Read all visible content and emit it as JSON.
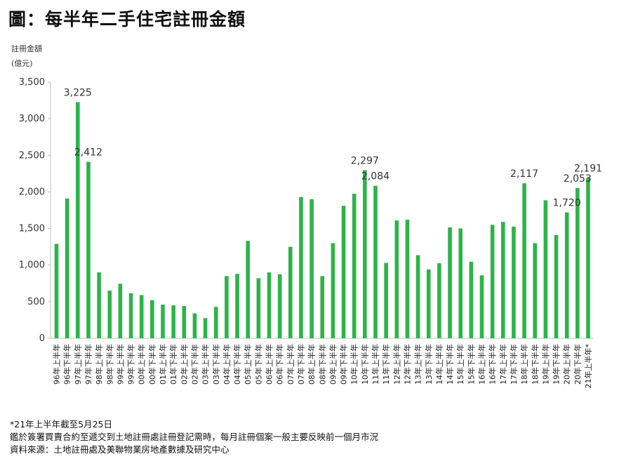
{
  "title": "圖：每半年二手住宅註冊金額",
  "chart_data": {
    "type": "bar",
    "title": "圖：每半年二手住宅註冊金額",
    "ylabel_line1": "註冊金額",
    "ylabel_line2": "(億元)",
    "xlabel": "",
    "ylim": [
      0,
      3500
    ],
    "yticks": [
      0,
      500,
      1000,
      1500,
      2000,
      2500,
      3000,
      3500
    ],
    "ytick_labels": [
      "0",
      "500",
      "1,000",
      "1,500",
      "2,000",
      "2,500",
      "3,000",
      "3,500"
    ],
    "grid": false,
    "bar_color": "#2db34a",
    "categories": [
      "96年上半年",
      "96年下半年",
      "97年上半年",
      "97年下半年",
      "98年上半年",
      "98年下半年",
      "99年上半年",
      "99年下半年",
      "00年上半年",
      "00年下半年",
      "01年上半年",
      "01年下半年",
      "02年上半年",
      "02年下半年",
      "03年上半年",
      "03年下半年",
      "04年上半年",
      "04年下半年",
      "05年上半年",
      "05年下半年",
      "06年上半年",
      "06年下半年",
      "07年上半年",
      "07年下半年",
      "08年上半年",
      "08年下半年",
      "09年上半年",
      "09年下半年",
      "10年上半年",
      "10年下半年",
      "11年上半年",
      "11年下半年",
      "12年上半年",
      "12年下半年",
      "13年上半年",
      "13年下半年",
      "14年上半年",
      "14年下半年",
      "15年上半年",
      "15年下半年",
      "16年上半年",
      "16年下半年",
      "17年上半年",
      "17年下半年",
      "18年上半年",
      "18年下半年",
      "19年上半年",
      "19年下半年",
      "20年上半年",
      "20年下半年",
      "21年上半年*"
    ],
    "values": [
      1290,
      1910,
      3225,
      2412,
      900,
      650,
      745,
      615,
      590,
      520,
      460,
      450,
      440,
      340,
      275,
      430,
      850,
      880,
      1330,
      820,
      900,
      875,
      1250,
      1930,
      1900,
      850,
      1300,
      1810,
      1975,
      2297,
      2084,
      1030,
      1610,
      1620,
      1135,
      940,
      1025,
      1515,
      1500,
      1045,
      860,
      1550,
      1590,
      1525,
      2117,
      1300,
      1885,
      1410,
      1720,
      2053,
      2191
    ],
    "data_labels": [
      {
        "index": 2,
        "text": "3,225"
      },
      {
        "index": 3,
        "text": "2,412"
      },
      {
        "index": 29,
        "text": "2,297"
      },
      {
        "index": 30,
        "text": "2,084"
      },
      {
        "index": 44,
        "text": "2,117"
      },
      {
        "index": 48,
        "text": "1,720"
      },
      {
        "index": 49,
        "text": "2,053"
      },
      {
        "index": 50,
        "text": "2,191"
      }
    ]
  },
  "notes": {
    "line1": "*21年上半年截至5月25日",
    "line2": "鑑於簽署買賣合約至遞交到土地註冊處註冊登記需時，每月註冊個案一般主要反映前一個月市況",
    "line3": "資料來源：土地註冊處及美聯物業房地產數據及研究中心"
  }
}
